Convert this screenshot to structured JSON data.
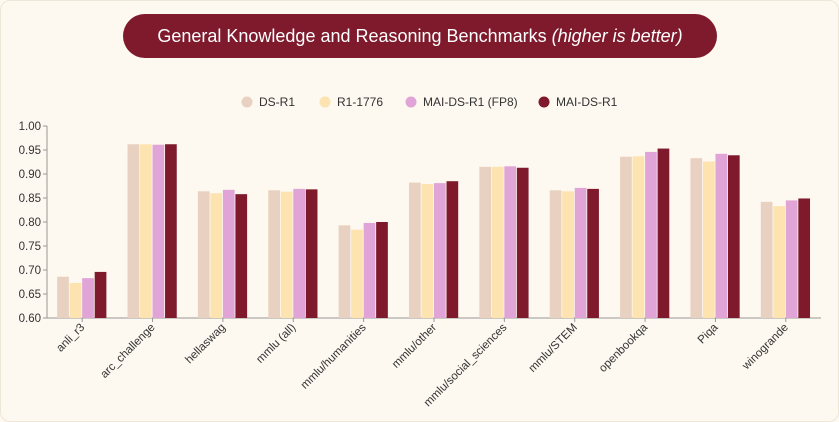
{
  "header": {
    "title": "General Knowledge and Reasoning Benchmarks",
    "subtitle": "(higher is better)"
  },
  "chart_data": {
    "type": "bar",
    "title": "General Knowledge and Reasoning Benchmarks (higher is better)",
    "xlabel": "",
    "ylabel": "",
    "ylim": [
      0.6,
      1.0
    ],
    "yticks": [
      "0.60",
      "0.65",
      "0.70",
      "0.75",
      "0.80",
      "0.85",
      "0.90",
      "0.95",
      "1.00"
    ],
    "grid": false,
    "legend_position": "top-center",
    "categories": [
      "anli_r3",
      "arc_challenge",
      "hellaswag",
      "mmlu (all)",
      "mmlu/humanities",
      "mmlu/other",
      "mmlu/social_sciences",
      "mmlu/STEM",
      "openbookqa",
      "Piqa",
      "winogrande"
    ],
    "series": [
      {
        "name": "DS-R1",
        "color": "#e8d1c0",
        "values": [
          0.686,
          0.962,
          0.864,
          0.866,
          0.793,
          0.882,
          0.915,
          0.866,
          0.936,
          0.933,
          0.842
        ]
      },
      {
        "name": "R1-1776",
        "color": "#fde3b0",
        "values": [
          0.673,
          0.962,
          0.86,
          0.863,
          0.784,
          0.879,
          0.915,
          0.864,
          0.937,
          0.926,
          0.833
        ]
      },
      {
        "name": "MAI-DS-R1 (FP8)",
        "color": "#e0a4d6",
        "values": [
          0.683,
          0.961,
          0.867,
          0.869,
          0.798,
          0.881,
          0.916,
          0.871,
          0.946,
          0.942,
          0.845
        ]
      },
      {
        "name": "MAI-DS-R1",
        "color": "#7e1a2c",
        "values": [
          0.696,
          0.962,
          0.858,
          0.868,
          0.8,
          0.885,
          0.913,
          0.869,
          0.953,
          0.939,
          0.849
        ]
      }
    ]
  }
}
